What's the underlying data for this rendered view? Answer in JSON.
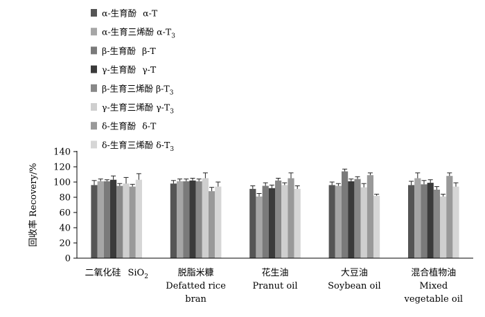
{
  "chart_data": {
    "type": "bar",
    "ylabel": "回收率 Recovery/%",
    "ylim": [
      0,
      140
    ],
    "yticks": [
      "0",
      "20",
      "40",
      "60",
      "80",
      "100",
      "120",
      "140"
    ],
    "grid": false,
    "legend_position": "top-center",
    "categories": [
      {
        "lines": [
          "二氧化硅 SiO2"
        ],
        "zh": "二氧化硅",
        "en": "SiO",
        "sub": "2"
      },
      {
        "lines": [
          "脱脂米糠",
          "Defatted rice",
          "bran"
        ]
      },
      {
        "lines": [
          "花生油",
          "Pranut oil"
        ]
      },
      {
        "lines": [
          "大豆油",
          "Soybean oil"
        ]
      },
      {
        "lines": [
          "混合植物油",
          "Mixed",
          "vegetable oil"
        ]
      }
    ],
    "series": [
      {
        "name": "α-生育酚  α-T",
        "zh": "α-生育酚",
        "en": "α-T",
        "sub": "",
        "color": "#555555",
        "values": [
          96,
          98,
          91,
          96,
          96
        ],
        "errors": [
          6,
          4,
          4,
          4,
          5
        ]
      },
      {
        "name": "α-生育三烯酚 α-T3",
        "zh": "α-生育三烯酚",
        "en": "α-T",
        "sub": "3",
        "color": "#a6a6a6",
        "values": [
          101,
          101,
          81,
          95,
          105
        ],
        "errors": [
          3,
          3,
          4,
          3,
          7
        ]
      },
      {
        "name": "β-生育酚  β-T",
        "zh": "β-生育酚",
        "en": "β-T",
        "sub": "",
        "color": "#7a7a7a",
        "values": [
          101,
          101,
          95,
          114,
          97
        ],
        "errors": [
          2,
          3,
          4,
          3,
          5
        ]
      },
      {
        "name": "γ-生育酚  γ-T",
        "zh": "γ-生育酚",
        "en": "γ-T",
        "sub": "",
        "color": "#3a3a3a",
        "values": [
          103,
          102,
          92,
          101,
          99
        ],
        "errors": [
          5,
          3,
          4,
          3,
          4
        ]
      },
      {
        "name": "β-生育三烯酚 β-T3",
        "zh": "β-生育三烯酚",
        "en": "β-T",
        "sub": "3",
        "color": "#888888",
        "values": [
          95,
          101,
          102,
          104,
          90
        ],
        "errors": [
          3,
          3,
          3,
          3,
          4
        ]
      },
      {
        "name": "γ-生育三烯酚 γ-T3",
        "zh": "γ-生育三烯酚",
        "en": "γ-T",
        "sub": "3",
        "color": "#cfcfcf",
        "values": [
          98,
          105,
          96,
          93,
          81
        ],
        "errors": [
          8,
          7,
          3,
          5,
          3
        ]
      },
      {
        "name": "δ-生育酚  δ-T",
        "zh": "δ-生育酚",
        "en": "δ-T",
        "sub": "",
        "color": "#999999",
        "values": [
          94,
          88,
          105,
          109,
          108
        ],
        "errors": [
          3,
          5,
          7,
          3,
          4
        ]
      },
      {
        "name": "δ-生育三烯酚 δ-T3",
        "zh": "δ-生育三烯酚",
        "en": "δ-T",
        "sub": "3",
        "color": "#d6d6d6",
        "values": [
          103,
          94,
          91,
          82,
          94
        ],
        "errors": [
          8,
          6,
          4,
          2,
          5
        ]
      }
    ]
  }
}
